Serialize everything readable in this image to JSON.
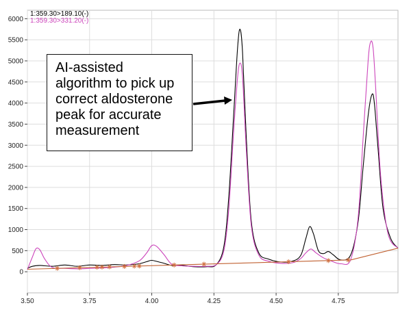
{
  "chart_data": {
    "type": "line",
    "xlim": [
      3.5,
      4.99
    ],
    "ylim": [
      -500,
      6200
    ],
    "x_ticks": [
      "3.50",
      "3.75",
      "4.00",
      "4.25",
      "4.50",
      "4.75"
    ],
    "y_ticks": [
      "0",
      "500",
      "1000",
      "1500",
      "2000",
      "2500",
      "3000",
      "3500",
      "4000",
      "4500",
      "5000",
      "5500",
      "6000"
    ],
    "grid": true,
    "legend_placement": "top-left",
    "series": [
      {
        "name": "1:359.30>189.10(-)",
        "color": "#000000",
        "x": [
          3.5,
          3.52,
          3.55,
          3.6,
          3.65,
          3.7,
          3.75,
          3.8,
          3.85,
          3.9,
          3.95,
          3.98,
          4.0,
          4.03,
          4.05,
          4.08,
          4.12,
          4.17,
          4.22,
          4.26,
          4.29,
          4.31,
          4.33,
          4.345,
          4.355,
          4.365,
          4.38,
          4.4,
          4.43,
          4.47,
          4.52,
          4.57,
          4.6,
          4.62,
          4.635,
          4.65,
          4.67,
          4.69,
          4.71,
          4.73,
          4.76,
          4.8,
          4.83,
          4.85,
          4.87,
          4.885,
          4.895,
          4.91,
          4.93,
          4.96,
          4.99
        ],
        "y": [
          80,
          130,
          150,
          130,
          160,
          130,
          160,
          150,
          170,
          160,
          190,
          240,
          270,
          230,
          200,
          150,
          150,
          120,
          120,
          170,
          600,
          1800,
          3800,
          5300,
          5750,
          5200,
          3200,
          1200,
          450,
          300,
          230,
          260,
          400,
          800,
          1070,
          900,
          500,
          430,
          480,
          400,
          280,
          400,
          1200,
          2500,
          3700,
          4200,
          4000,
          2900,
          1500,
          800,
          560
        ]
      },
      {
        "name": "1:359.30>331.20(-)",
        "color": "#cc44bb",
        "x": [
          3.5,
          3.52,
          3.535,
          3.55,
          3.57,
          3.6,
          3.65,
          3.7,
          3.75,
          3.8,
          3.85,
          3.9,
          3.95,
          3.98,
          4.0,
          4.02,
          4.05,
          4.08,
          4.12,
          4.17,
          4.22,
          4.26,
          4.29,
          4.31,
          4.33,
          4.345,
          4.355,
          4.365,
          4.38,
          4.4,
          4.43,
          4.47,
          4.52,
          4.57,
          4.6,
          4.62,
          4.64,
          4.66,
          4.69,
          4.72,
          4.76,
          4.8,
          4.83,
          4.85,
          4.87,
          4.88,
          4.89,
          4.9,
          4.92,
          4.95,
          4.99
        ],
        "y": [
          50,
          350,
          550,
          520,
          300,
          100,
          80,
          70,
          80,
          90,
          110,
          150,
          260,
          450,
          620,
          600,
          400,
          180,
          140,
          130,
          130,
          170,
          500,
          1500,
          3400,
          4600,
          4950,
          4600,
          2900,
          1100,
          400,
          250,
          200,
          220,
          320,
          450,
          540,
          450,
          330,
          260,
          190,
          290,
          1300,
          3200,
          5000,
          5450,
          5300,
          4400,
          2300,
          900,
          560
        ]
      },
      {
        "name": "baseline",
        "color": "#c06030",
        "x": [
          3.5,
          4.8,
          4.99
        ],
        "y": [
          60,
          280,
          560
        ]
      }
    ],
    "baseline_markers_x": [
      3.62,
      3.71,
      3.78,
      3.8,
      3.83,
      3.89,
      3.93,
      3.95,
      4.09,
      4.21,
      4.55,
      4.71,
      4.79
    ]
  },
  "legend": {
    "series1": "1:359.30>189.10(-)",
    "series2": "1:359.30>331.20(-)"
  },
  "annotation": {
    "lines": [
      "AI-assisted",
      "algorithm to pick up",
      "correct aldosterone",
      "peak for accurate",
      "measurement"
    ]
  }
}
